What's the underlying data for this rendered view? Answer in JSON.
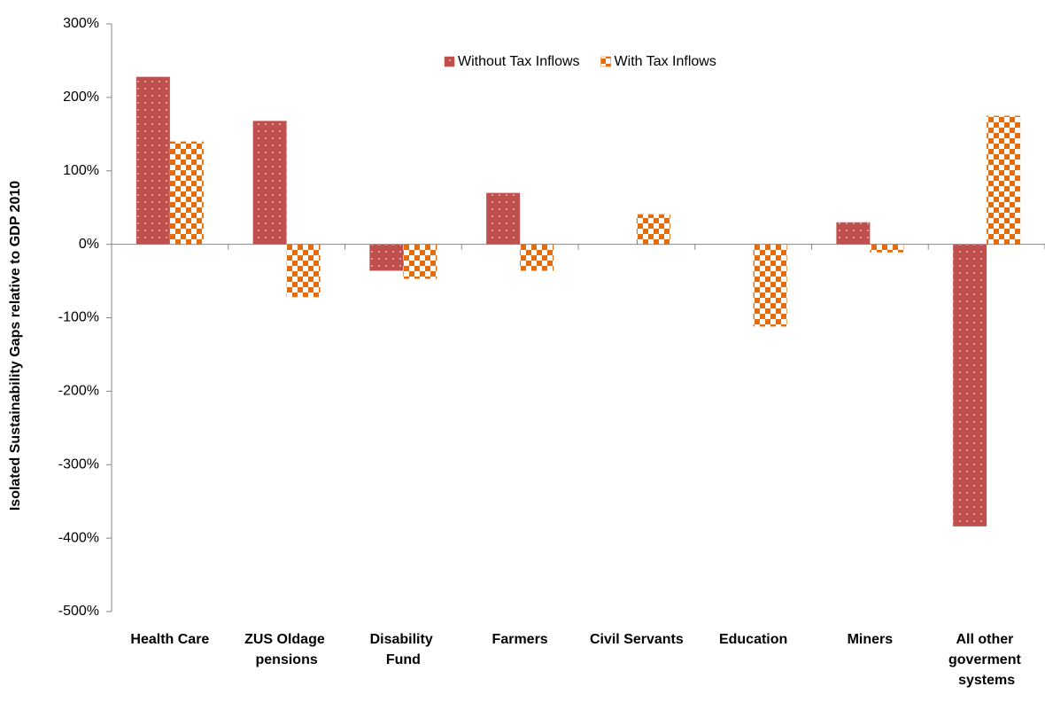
{
  "chart_data": {
    "type": "bar",
    "y_label": "Isolated Sustainability Gaps relative to GDP 2010",
    "categories": [
      "Health Care",
      "ZUS Oldage pensions",
      "Disability Fund",
      "Farmers",
      "Civil Servants",
      "Education",
      "Miners",
      "All other goverment systems"
    ],
    "series": [
      {
        "name": "Without Tax Inflows",
        "color": "#c0504d",
        "values": [
          228,
          168,
          -36,
          70,
          0,
          0,
          30,
          -384
        ]
      },
      {
        "name": "With Tax Inflows",
        "color": "#e46c0a",
        "values": [
          140,
          -72,
          -47,
          -36,
          41,
          -112,
          -11,
          175
        ]
      }
    ],
    "ylim": [
      -500,
      300
    ],
    "yticks": [
      {
        "value": -500,
        "label": "-500%"
      },
      {
        "value": -400,
        "label": "-400%"
      },
      {
        "value": -300,
        "label": "-300%"
      },
      {
        "value": -200,
        "label": "-200%"
      },
      {
        "value": -100,
        "label": "-100%"
      },
      {
        "value": 0,
        "label": "0%"
      },
      {
        "value": 100,
        "label": "100%"
      },
      {
        "value": 200,
        "label": "200%"
      },
      {
        "value": 300,
        "label": "300%"
      }
    ],
    "legend": "top",
    "grid": false
  }
}
